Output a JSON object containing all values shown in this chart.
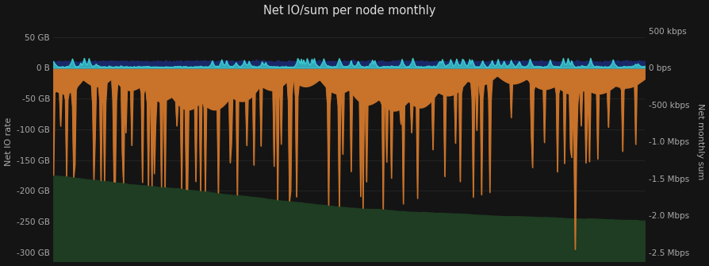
{
  "title": "Net IO/sum per node monthly",
  "background_color": "#141414",
  "plot_bg_color": "#141414",
  "left_ylabel": "Net IO rate",
  "right_ylabel": "Net monthly sum",
  "left_yticks": [
    50,
    0,
    -50,
    -100,
    -150,
    -200,
    -250,
    -300
  ],
  "left_ylabels": [
    "50 GB",
    "0 B",
    "-50 GB",
    "-100 GB",
    "-150 GB",
    "-200 GB",
    "-250 GB",
    "-300 GB"
  ],
  "right_yticks": [
    500,
    0,
    -500,
    -1000,
    -1500,
    -2000,
    -2500
  ],
  "right_ylabels": [
    "500 kbps",
    "0 bps",
    "-500 kbps",
    "-1.0 Mbps",
    "-1.5 Mbps",
    "-2.0 Mbps",
    "-2.5 Mbps"
  ],
  "left_ylim": [
    -315,
    75
  ],
  "right_ylim": [
    -2625,
    625
  ],
  "n_points": 500,
  "orange_color": "#c8722a",
  "dark_green_color": "#1e3d22",
  "cyan_color": "#3dd6d6",
  "dark_blue_color": "#1a2a6e",
  "grid_color": "#333333",
  "title_color": "#dddddd",
  "label_color": "#aaaaaa",
  "tick_color": "#aaaaaa"
}
